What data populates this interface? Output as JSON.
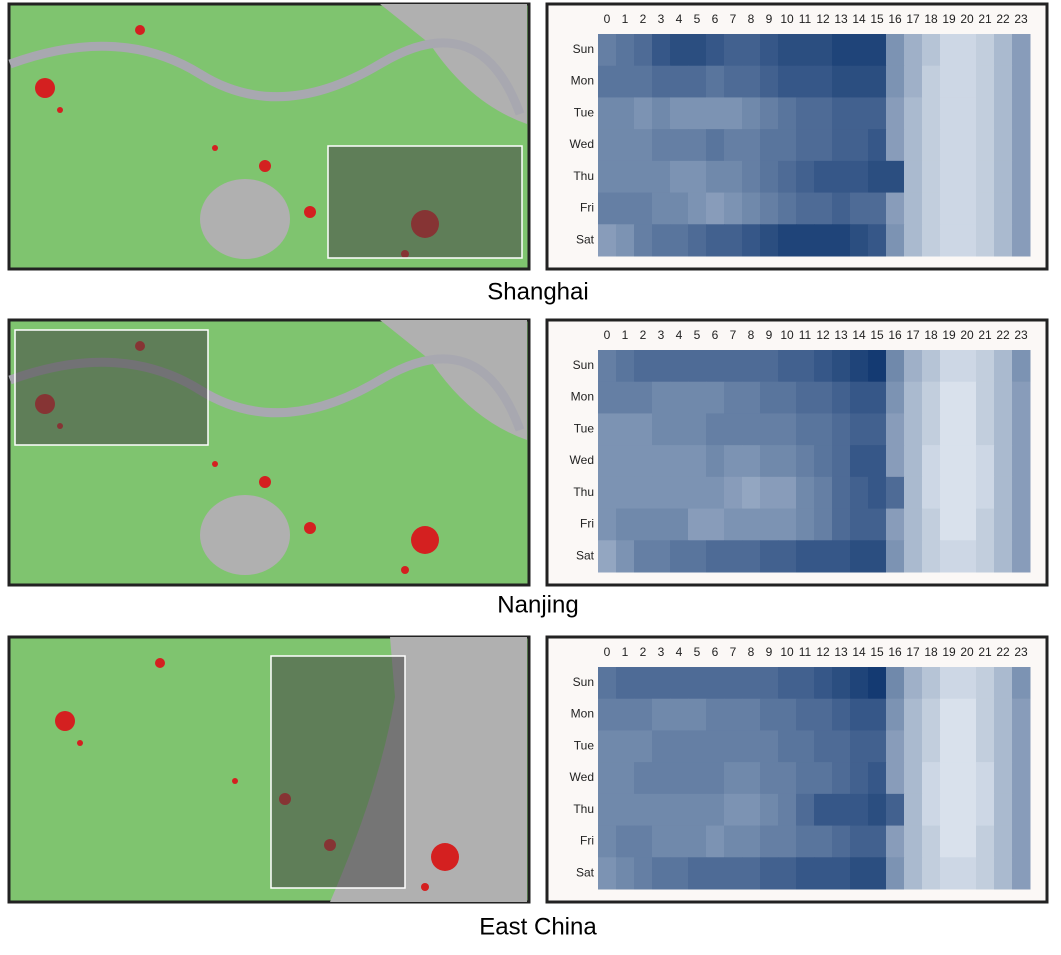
{
  "chart_data": [
    {
      "type": "heatmap",
      "title": "Shanghai",
      "x": [
        "0",
        "1",
        "2",
        "3",
        "4",
        "5",
        "6",
        "7",
        "8",
        "9",
        "10",
        "11",
        "12",
        "13",
        "14",
        "15",
        "16",
        "17",
        "18",
        "19",
        "20",
        "21",
        "22",
        "23"
      ],
      "y": [
        "Sun",
        "Mon",
        "Tue",
        "Wed",
        "Thu",
        "Fri",
        "Sat"
      ],
      "values": [
        [
          0.6,
          0.65,
          0.7,
          0.8,
          0.85,
          0.85,
          0.8,
          0.75,
          0.75,
          0.8,
          0.85,
          0.85,
          0.85,
          0.9,
          0.9,
          0.9,
          0.5,
          0.35,
          0.25,
          0.15,
          0.15,
          0.2,
          0.3,
          0.45
        ],
        [
          0.65,
          0.65,
          0.65,
          0.7,
          0.7,
          0.7,
          0.65,
          0.7,
          0.7,
          0.75,
          0.8,
          0.8,
          0.8,
          0.85,
          0.85,
          0.85,
          0.5,
          0.35,
          0.2,
          0.15,
          0.15,
          0.2,
          0.3,
          0.45
        ],
        [
          0.55,
          0.55,
          0.5,
          0.55,
          0.5,
          0.5,
          0.5,
          0.5,
          0.55,
          0.6,
          0.65,
          0.7,
          0.7,
          0.75,
          0.75,
          0.75,
          0.45,
          0.3,
          0.2,
          0.15,
          0.15,
          0.2,
          0.3,
          0.45
        ],
        [
          0.55,
          0.55,
          0.55,
          0.6,
          0.6,
          0.6,
          0.65,
          0.6,
          0.6,
          0.65,
          0.65,
          0.7,
          0.7,
          0.75,
          0.75,
          0.8,
          0.45,
          0.3,
          0.2,
          0.15,
          0.15,
          0.2,
          0.3,
          0.45
        ],
        [
          0.55,
          0.55,
          0.55,
          0.55,
          0.5,
          0.5,
          0.55,
          0.55,
          0.6,
          0.65,
          0.7,
          0.75,
          0.8,
          0.8,
          0.8,
          0.85,
          0.85,
          0.3,
          0.2,
          0.15,
          0.15,
          0.2,
          0.3,
          0.45
        ],
        [
          0.6,
          0.6,
          0.6,
          0.55,
          0.55,
          0.5,
          0.45,
          0.5,
          0.55,
          0.6,
          0.65,
          0.7,
          0.7,
          0.75,
          0.7,
          0.7,
          0.45,
          0.3,
          0.2,
          0.15,
          0.15,
          0.2,
          0.3,
          0.45
        ],
        [
          0.45,
          0.5,
          0.6,
          0.65,
          0.65,
          0.7,
          0.75,
          0.75,
          0.8,
          0.85,
          0.9,
          0.9,
          0.9,
          0.9,
          0.85,
          0.8,
          0.5,
          0.3,
          0.2,
          0.15,
          0.15,
          0.2,
          0.3,
          0.45
        ]
      ]
    },
    {
      "type": "heatmap",
      "title": "Nanjing",
      "x": [
        "0",
        "1",
        "2",
        "3",
        "4",
        "5",
        "6",
        "7",
        "8",
        "9",
        "10",
        "11",
        "12",
        "13",
        "14",
        "15",
        "16",
        "17",
        "18",
        "19",
        "20",
        "21",
        "22",
        "23"
      ],
      "y": [
        "Sun",
        "Mon",
        "Tue",
        "Wed",
        "Thu",
        "Fri",
        "Sat"
      ],
      "values": [
        [
          0.6,
          0.65,
          0.7,
          0.7,
          0.7,
          0.7,
          0.7,
          0.7,
          0.7,
          0.7,
          0.75,
          0.75,
          0.8,
          0.85,
          0.9,
          0.95,
          0.55,
          0.35,
          0.25,
          0.15,
          0.15,
          0.2,
          0.3,
          0.5
        ],
        [
          0.6,
          0.6,
          0.6,
          0.55,
          0.55,
          0.55,
          0.55,
          0.6,
          0.6,
          0.65,
          0.65,
          0.7,
          0.7,
          0.75,
          0.8,
          0.8,
          0.5,
          0.3,
          0.2,
          0.1,
          0.1,
          0.2,
          0.3,
          0.45
        ],
        [
          0.5,
          0.5,
          0.5,
          0.55,
          0.55,
          0.55,
          0.6,
          0.6,
          0.6,
          0.6,
          0.6,
          0.65,
          0.65,
          0.7,
          0.75,
          0.75,
          0.45,
          0.3,
          0.2,
          0.1,
          0.1,
          0.2,
          0.3,
          0.45
        ],
        [
          0.5,
          0.5,
          0.5,
          0.5,
          0.5,
          0.5,
          0.55,
          0.5,
          0.5,
          0.55,
          0.55,
          0.6,
          0.65,
          0.7,
          0.8,
          0.8,
          0.45,
          0.3,
          0.15,
          0.1,
          0.1,
          0.15,
          0.3,
          0.45
        ],
        [
          0.5,
          0.5,
          0.5,
          0.5,
          0.5,
          0.5,
          0.5,
          0.45,
          0.4,
          0.45,
          0.45,
          0.55,
          0.6,
          0.7,
          0.75,
          0.8,
          0.7,
          0.3,
          0.15,
          0.1,
          0.1,
          0.15,
          0.3,
          0.45
        ],
        [
          0.5,
          0.55,
          0.55,
          0.55,
          0.55,
          0.45,
          0.45,
          0.5,
          0.5,
          0.5,
          0.5,
          0.55,
          0.6,
          0.7,
          0.75,
          0.75,
          0.45,
          0.3,
          0.2,
          0.1,
          0.1,
          0.2,
          0.3,
          0.45
        ],
        [
          0.4,
          0.5,
          0.6,
          0.6,
          0.65,
          0.65,
          0.7,
          0.7,
          0.7,
          0.75,
          0.75,
          0.8,
          0.8,
          0.8,
          0.85,
          0.85,
          0.5,
          0.3,
          0.2,
          0.15,
          0.15,
          0.2,
          0.3,
          0.45
        ]
      ]
    },
    {
      "type": "heatmap",
      "title": "East China",
      "x": [
        "0",
        "1",
        "2",
        "3",
        "4",
        "5",
        "6",
        "7",
        "8",
        "9",
        "10",
        "11",
        "12",
        "13",
        "14",
        "15",
        "16",
        "17",
        "18",
        "19",
        "20",
        "21",
        "22",
        "23"
      ],
      "y": [
        "Sun",
        "Mon",
        "Tue",
        "Wed",
        "Thu",
        "Fri",
        "Sat"
      ],
      "values": [
        [
          0.65,
          0.7,
          0.7,
          0.7,
          0.7,
          0.7,
          0.7,
          0.7,
          0.7,
          0.7,
          0.75,
          0.75,
          0.8,
          0.85,
          0.9,
          0.95,
          0.55,
          0.35,
          0.25,
          0.15,
          0.15,
          0.2,
          0.3,
          0.5
        ],
        [
          0.6,
          0.6,
          0.6,
          0.55,
          0.55,
          0.55,
          0.6,
          0.6,
          0.6,
          0.65,
          0.65,
          0.7,
          0.7,
          0.75,
          0.8,
          0.8,
          0.5,
          0.3,
          0.2,
          0.1,
          0.1,
          0.2,
          0.3,
          0.45
        ],
        [
          0.55,
          0.55,
          0.55,
          0.6,
          0.6,
          0.6,
          0.6,
          0.6,
          0.6,
          0.6,
          0.65,
          0.65,
          0.7,
          0.7,
          0.75,
          0.75,
          0.45,
          0.3,
          0.2,
          0.1,
          0.1,
          0.2,
          0.3,
          0.45
        ],
        [
          0.55,
          0.55,
          0.6,
          0.6,
          0.6,
          0.6,
          0.6,
          0.55,
          0.55,
          0.6,
          0.6,
          0.65,
          0.65,
          0.7,
          0.75,
          0.8,
          0.45,
          0.3,
          0.15,
          0.1,
          0.1,
          0.15,
          0.3,
          0.45
        ],
        [
          0.55,
          0.55,
          0.55,
          0.55,
          0.55,
          0.55,
          0.55,
          0.5,
          0.5,
          0.55,
          0.6,
          0.7,
          0.8,
          0.8,
          0.8,
          0.85,
          0.75,
          0.3,
          0.15,
          0.1,
          0.1,
          0.15,
          0.3,
          0.45
        ],
        [
          0.55,
          0.6,
          0.6,
          0.55,
          0.55,
          0.55,
          0.5,
          0.55,
          0.55,
          0.6,
          0.6,
          0.65,
          0.65,
          0.7,
          0.75,
          0.75,
          0.45,
          0.3,
          0.2,
          0.1,
          0.1,
          0.2,
          0.3,
          0.45
        ],
        [
          0.5,
          0.55,
          0.6,
          0.65,
          0.65,
          0.7,
          0.7,
          0.7,
          0.7,
          0.75,
          0.75,
          0.8,
          0.8,
          0.8,
          0.85,
          0.85,
          0.5,
          0.3,
          0.2,
          0.15,
          0.15,
          0.2,
          0.3,
          0.45
        ]
      ]
    }
  ]
}
